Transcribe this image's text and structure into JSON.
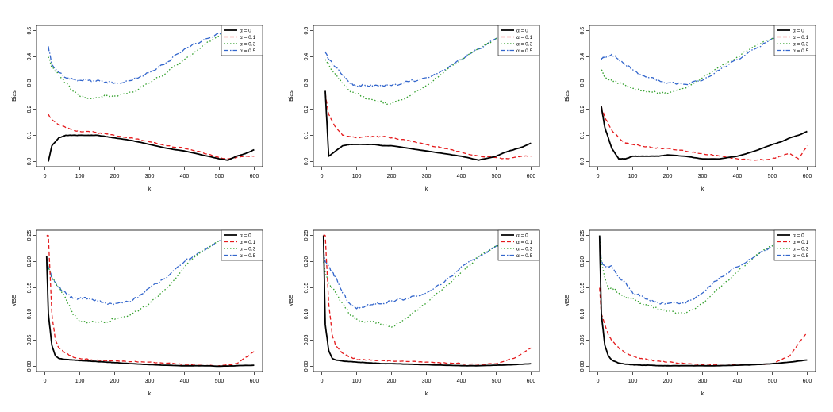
{
  "legend_entries": [
    "α = 0",
    "α = 0.1",
    "α = 0.3",
    "α = 0.5"
  ],
  "series_colors": [
    "#000000",
    "#e41a1c",
    "#33a02c",
    "#3366cc"
  ],
  "chart_data": [
    {
      "type": "line",
      "ylabel": "Bias",
      "xlabel": "k",
      "xlim": [
        0,
        600
      ],
      "ylim": [
        0,
        0.5
      ],
      "xticks": [
        0,
        100,
        200,
        300,
        400,
        500,
        600
      ],
      "yticks": [
        0.0,
        0.1,
        0.2,
        0.3,
        0.4,
        0.5
      ],
      "ytick_labels": [
        "0.0",
        "0.1",
        "0.2",
        "0.3",
        "0.4",
        "0.5"
      ],
      "legend": "top-right",
      "x": [
        10,
        20,
        40,
        60,
        80,
        100,
        125,
        150,
        175,
        200,
        250,
        300,
        350,
        400,
        450,
        500,
        525,
        550,
        575,
        600
      ],
      "series": [
        {
          "name": "α = 0",
          "values": [
            0.0,
            0.06,
            0.09,
            0.1,
            0.1,
            0.1,
            0.1,
            0.1,
            0.095,
            0.09,
            0.08,
            0.065,
            0.05,
            0.04,
            0.025,
            0.01,
            0.005,
            0.02,
            0.03,
            0.045
          ]
        },
        {
          "name": "α = 0.1",
          "values": [
            0.18,
            0.16,
            0.14,
            0.13,
            0.12,
            0.115,
            0.115,
            0.11,
            0.105,
            0.1,
            0.09,
            0.075,
            0.06,
            0.05,
            0.035,
            0.015,
            0.01,
            0.015,
            0.02,
            0.02
          ]
        },
        {
          "name": "α = 0.3",
          "values": [
            0.4,
            0.36,
            0.33,
            0.3,
            0.27,
            0.25,
            0.24,
            0.245,
            0.25,
            0.25,
            0.265,
            0.3,
            0.34,
            0.39,
            0.44,
            0.48,
            0.49,
            0.5,
            0.5,
            0.5
          ]
        },
        {
          "name": "α = 0.5",
          "values": [
            0.44,
            0.37,
            0.34,
            0.32,
            0.315,
            0.31,
            0.31,
            0.31,
            0.305,
            0.3,
            0.31,
            0.34,
            0.38,
            0.43,
            0.46,
            0.49,
            0.495,
            0.5,
            0.5,
            0.5
          ]
        }
      ]
    },
    {
      "type": "line",
      "ylabel": "Bias",
      "xlabel": "k",
      "xlim": [
        0,
        600
      ],
      "ylim": [
        0,
        0.5
      ],
      "xticks": [
        0,
        100,
        200,
        300,
        400,
        500,
        600
      ],
      "yticks": [
        0.0,
        0.1,
        0.2,
        0.3,
        0.4,
        0.5
      ],
      "ytick_labels": [
        "0.0",
        "0.1",
        "0.2",
        "0.3",
        "0.4",
        "0.5"
      ],
      "legend": "top-right",
      "x": [
        10,
        20,
        40,
        60,
        80,
        100,
        125,
        150,
        175,
        200,
        250,
        300,
        350,
        400,
        450,
        500,
        525,
        550,
        575,
        600
      ],
      "series": [
        {
          "name": "α = 0",
          "values": [
            0.27,
            0.02,
            0.04,
            0.06,
            0.065,
            0.065,
            0.065,
            0.065,
            0.06,
            0.06,
            0.05,
            0.04,
            0.03,
            0.02,
            0.005,
            0.02,
            0.035,
            0.045,
            0.055,
            0.07
          ]
        },
        {
          "name": "α = 0.1",
          "values": [
            0.26,
            0.18,
            0.13,
            0.1,
            0.095,
            0.09,
            0.095,
            0.095,
            0.095,
            0.09,
            0.08,
            0.065,
            0.05,
            0.035,
            0.02,
            0.015,
            0.01,
            0.015,
            0.02,
            0.02
          ]
        },
        {
          "name": "α = 0.3",
          "values": [
            0.39,
            0.37,
            0.33,
            0.3,
            0.27,
            0.26,
            0.24,
            0.235,
            0.225,
            0.22,
            0.25,
            0.29,
            0.34,
            0.39,
            0.43,
            0.47,
            0.48,
            0.49,
            0.5,
            0.5
          ]
        },
        {
          "name": "α = 0.5",
          "values": [
            0.42,
            0.39,
            0.36,
            0.33,
            0.3,
            0.29,
            0.29,
            0.29,
            0.29,
            0.29,
            0.305,
            0.32,
            0.35,
            0.39,
            0.43,
            0.47,
            0.48,
            0.49,
            0.5,
            0.5
          ]
        }
      ]
    },
    {
      "type": "line",
      "ylabel": "Bias",
      "xlabel": "k",
      "xlim": [
        0,
        600
      ],
      "ylim": [
        0,
        0.5
      ],
      "xticks": [
        0,
        100,
        200,
        300,
        400,
        500,
        600
      ],
      "yticks": [
        0.0,
        0.1,
        0.2,
        0.3,
        0.4,
        0.5
      ],
      "ytick_labels": [
        "0.0",
        "0.1",
        "0.2",
        "0.3",
        "0.4",
        "0.5"
      ],
      "legend": "top-right",
      "x": [
        10,
        20,
        40,
        60,
        80,
        100,
        125,
        150,
        175,
        200,
        250,
        300,
        350,
        400,
        450,
        500,
        525,
        550,
        575,
        600
      ],
      "series": [
        {
          "name": "α = 0",
          "values": [
            0.21,
            0.13,
            0.05,
            0.01,
            0.01,
            0.02,
            0.02,
            0.02,
            0.02,
            0.025,
            0.02,
            0.01,
            0.01,
            0.02,
            0.04,
            0.065,
            0.075,
            0.09,
            0.1,
            0.115
          ]
        },
        {
          "name": "α = 0.1",
          "values": [
            0.21,
            0.17,
            0.12,
            0.09,
            0.07,
            0.065,
            0.06,
            0.055,
            0.05,
            0.05,
            0.04,
            0.03,
            0.02,
            0.01,
            0.005,
            0.01,
            0.02,
            0.03,
            0.01,
            0.06
          ]
        },
        {
          "name": "α = 0.3",
          "values": [
            0.35,
            0.32,
            0.31,
            0.3,
            0.29,
            0.28,
            0.27,
            0.265,
            0.265,
            0.26,
            0.28,
            0.32,
            0.36,
            0.4,
            0.44,
            0.47,
            0.48,
            0.49,
            0.49,
            0.49
          ]
        },
        {
          "name": "α = 0.5",
          "values": [
            0.39,
            0.4,
            0.41,
            0.39,
            0.37,
            0.35,
            0.33,
            0.32,
            0.31,
            0.3,
            0.295,
            0.31,
            0.35,
            0.39,
            0.43,
            0.47,
            0.48,
            0.485,
            0.49,
            0.49
          ]
        }
      ]
    },
    {
      "type": "line",
      "ylabel": "MSE",
      "xlabel": "k",
      "xlim": [
        0,
        600
      ],
      "ylim": [
        0,
        0.25
      ],
      "xticks": [
        0,
        100,
        200,
        300,
        400,
        500,
        600
      ],
      "yticks": [
        0.0,
        0.05,
        0.1,
        0.15,
        0.2,
        0.25
      ],
      "ytick_labels": [
        "0.00",
        "0.05",
        "0.10",
        "0.15",
        "0.20",
        "0.25"
      ],
      "legend": "top-right",
      "x": [
        5,
        10,
        20,
        30,
        40,
        60,
        80,
        100,
        125,
        150,
        175,
        200,
        250,
        300,
        350,
        400,
        450,
        500,
        550,
        600
      ],
      "series": [
        {
          "name": "α = 0",
          "values": [
            0.21,
            0.1,
            0.04,
            0.02,
            0.015,
            0.013,
            0.012,
            0.011,
            0.01,
            0.009,
            0.008,
            0.007,
            0.005,
            0.003,
            0.002,
            0.001,
            0.001,
            0.0,
            0.001,
            0.002
          ]
        },
        {
          "name": "α = 0.1",
          "values": [
            0.25,
            0.25,
            0.1,
            0.05,
            0.035,
            0.025,
            0.018,
            0.015,
            0.013,
            0.012,
            0.011,
            0.01,
            0.009,
            0.008,
            0.006,
            0.004,
            0.002,
            0.001,
            0.005,
            0.028
          ]
        },
        {
          "name": "α = 0.3",
          "values": [
            0.21,
            0.19,
            0.17,
            0.16,
            0.15,
            0.13,
            0.1,
            0.085,
            0.085,
            0.085,
            0.085,
            0.09,
            0.1,
            0.12,
            0.15,
            0.19,
            0.22,
            0.24,
            0.25,
            0.25
          ]
        },
        {
          "name": "α = 0.5",
          "values": [
            0.21,
            0.19,
            0.17,
            0.16,
            0.15,
            0.14,
            0.13,
            0.13,
            0.13,
            0.125,
            0.12,
            0.12,
            0.125,
            0.15,
            0.17,
            0.2,
            0.22,
            0.24,
            0.25,
            0.25
          ]
        }
      ]
    },
    {
      "type": "line",
      "ylabel": "MSE",
      "xlabel": "k",
      "xlim": [
        0,
        600
      ],
      "ylim": [
        0,
        0.25
      ],
      "xticks": [
        0,
        100,
        200,
        300,
        400,
        500,
        600
      ],
      "yticks": [
        0.0,
        0.05,
        0.1,
        0.15,
        0.2,
        0.25
      ],
      "ytick_labels": [
        "0.00",
        "0.05",
        "0.10",
        "0.15",
        "0.20",
        "0.25"
      ],
      "legend": "top-right",
      "x": [
        5,
        10,
        20,
        30,
        40,
        60,
        80,
        100,
        125,
        150,
        175,
        200,
        250,
        300,
        350,
        400,
        450,
        500,
        550,
        600
      ],
      "series": [
        {
          "name": "α = 0",
          "values": [
            0.25,
            0.08,
            0.03,
            0.015,
            0.012,
            0.01,
            0.009,
            0.008,
            0.007,
            0.006,
            0.005,
            0.005,
            0.004,
            0.003,
            0.002,
            0.001,
            0.001,
            0.002,
            0.003,
            0.005
          ]
        },
        {
          "name": "α = 0.1",
          "values": [
            0.25,
            0.25,
            0.12,
            0.06,
            0.04,
            0.025,
            0.018,
            0.013,
            0.012,
            0.012,
            0.011,
            0.01,
            0.009,
            0.008,
            0.007,
            0.005,
            0.004,
            0.005,
            0.015,
            0.035
          ]
        },
        {
          "name": "α = 0.3",
          "values": [
            0.2,
            0.18,
            0.16,
            0.15,
            0.14,
            0.12,
            0.1,
            0.09,
            0.085,
            0.085,
            0.08,
            0.075,
            0.095,
            0.12,
            0.15,
            0.18,
            0.21,
            0.23,
            0.24,
            0.24
          ]
        },
        {
          "name": "α = 0.5",
          "values": [
            0.22,
            0.2,
            0.19,
            0.18,
            0.17,
            0.14,
            0.12,
            0.11,
            0.115,
            0.12,
            0.12,
            0.125,
            0.13,
            0.14,
            0.16,
            0.19,
            0.21,
            0.23,
            0.24,
            0.24
          ]
        }
      ]
    },
    {
      "type": "line",
      "ylabel": "MSE",
      "xlabel": "k",
      "xlim": [
        0,
        600
      ],
      "ylim": [
        0,
        0.25
      ],
      "xticks": [
        0,
        100,
        200,
        300,
        400,
        500,
        600
      ],
      "yticks": [
        0.0,
        0.05,
        0.1,
        0.15,
        0.2,
        0.25
      ],
      "ytick_labels": [
        "0.00",
        "0.05",
        "0.10",
        "0.15",
        "0.20",
        "0.25"
      ],
      "legend": "top-right",
      "x": [
        5,
        10,
        20,
        30,
        40,
        60,
        80,
        100,
        125,
        150,
        175,
        200,
        250,
        300,
        350,
        400,
        450,
        500,
        550,
        600
      ],
      "series": [
        {
          "name": "α = 0",
          "values": [
            0.25,
            0.1,
            0.04,
            0.02,
            0.012,
            0.006,
            0.004,
            0.003,
            0.002,
            0.002,
            0.001,
            0.001,
            0.001,
            0.001,
            0.001,
            0.002,
            0.003,
            0.005,
            0.008,
            0.012
          ]
        },
        {
          "name": "α = 0.1",
          "values": [
            0.15,
            0.1,
            0.08,
            0.06,
            0.05,
            0.035,
            0.025,
            0.02,
            0.015,
            0.012,
            0.01,
            0.008,
            0.005,
            0.003,
            0.002,
            0.002,
            0.003,
            0.005,
            0.02,
            0.065
          ]
        },
        {
          "name": "α = 0.3",
          "values": [
            0.25,
            0.2,
            0.17,
            0.15,
            0.15,
            0.14,
            0.13,
            0.13,
            0.12,
            0.115,
            0.11,
            0.105,
            0.1,
            0.12,
            0.15,
            0.18,
            0.21,
            0.23,
            0.24,
            0.245
          ]
        },
        {
          "name": "α = 0.5",
          "values": [
            0.25,
            0.2,
            0.19,
            0.19,
            0.19,
            0.17,
            0.16,
            0.14,
            0.135,
            0.125,
            0.12,
            0.12,
            0.12,
            0.14,
            0.17,
            0.19,
            0.21,
            0.23,
            0.24,
            0.245
          ]
        }
      ]
    }
  ]
}
